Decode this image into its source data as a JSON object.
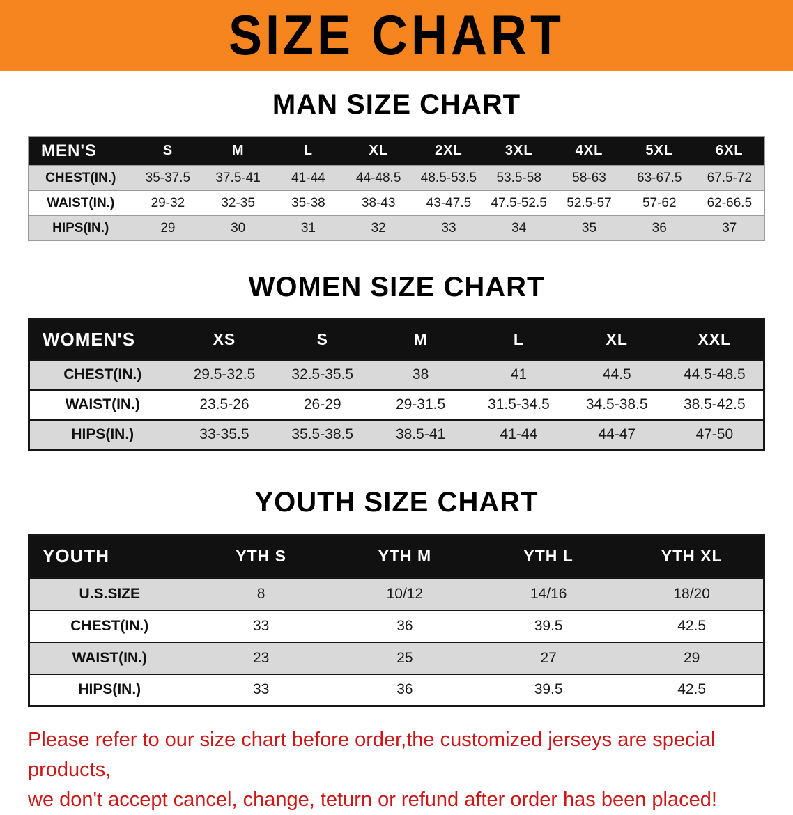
{
  "banner": {
    "title": "SIZE CHART",
    "bg_color": "#f6851f",
    "text_color": "#000000"
  },
  "sections": [
    {
      "id": "men",
      "heading": "MAN SIZE CHART",
      "header_label": "MEN'S",
      "columns": [
        "S",
        "M",
        "L",
        "XL",
        "2XL",
        "3XL",
        "4XL",
        "5XL",
        "6XL"
      ],
      "rows": [
        {
          "label": "CHEST(IN.)",
          "values": [
            "35-37.5",
            "37.5-41",
            "41-44",
            "44-48.5",
            "48.5-53.5",
            "53.5-58",
            "58-63",
            "63-67.5",
            "67.5-72"
          ]
        },
        {
          "label": "WAIST(IN.)",
          "values": [
            "29-32",
            "32-35",
            "35-38",
            "38-43",
            "43-47.5",
            "47.5-52.5",
            "52.5-57",
            "57-62",
            "62-66.5"
          ]
        },
        {
          "label": "HIPS(IN.)",
          "values": [
            "29",
            "30",
            "31",
            "32",
            "33",
            "34",
            "35",
            "36",
            "37"
          ]
        }
      ]
    },
    {
      "id": "women",
      "heading": "WOMEN SIZE CHART",
      "header_label": "WOMEN'S",
      "columns": [
        "XS",
        "S",
        "M",
        "L",
        "XL",
        "XXL"
      ],
      "rows": [
        {
          "label": "CHEST(IN.)",
          "values": [
            "29.5-32.5",
            "32.5-35.5",
            "38",
            "41",
            "44.5",
            "44.5-48.5"
          ]
        },
        {
          "label": "WAIST(IN.)",
          "values": [
            "23.5-26",
            "26-29",
            "29-31.5",
            "31.5-34.5",
            "34.5-38.5",
            "38.5-42.5"
          ]
        },
        {
          "label": "HIPS(IN.)",
          "values": [
            "33-35.5",
            "35.5-38.5",
            "38.5-41",
            "41-44",
            "44-47",
            "47-50"
          ]
        }
      ]
    },
    {
      "id": "youth",
      "heading": "YOUTH SIZE CHART",
      "header_label": "YOUTH",
      "columns": [
        "YTH S",
        "YTH M",
        "YTH L",
        "YTH XL"
      ],
      "rows": [
        {
          "label": "U.S.SIZE",
          "values": [
            "8",
            "10/12",
            "14/16",
            "18/20"
          ]
        },
        {
          "label": "CHEST(IN.)",
          "values": [
            "33",
            "36",
            "39.5",
            "42.5"
          ]
        },
        {
          "label": "WAIST(IN.)",
          "values": [
            "23",
            "25",
            "27",
            "29"
          ]
        },
        {
          "label": "HIPS(IN.)",
          "values": [
            "33",
            "36",
            "39.5",
            "42.5"
          ]
        }
      ]
    }
  ],
  "disclaimer": {
    "lines": [
      "Please refer to our size chart before order,the customized jerseys are special products,",
      "we don't accept cancel, change, teturn or refund after order has been placed!"
    ],
    "color": "#cf1616"
  }
}
